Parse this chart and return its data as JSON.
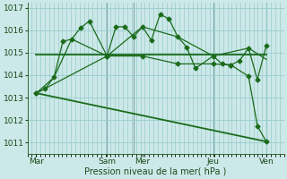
{
  "bg_color": "#cce8e8",
  "grid_color": "#99cccc",
  "line_color": "#1a6b1a",
  "xlabel": "Pression niveau de la mer( hPa )",
  "ylim": [
    1010.5,
    1017.2
  ],
  "yticks": [
    1011,
    1012,
    1013,
    1014,
    1015,
    1016,
    1017
  ],
  "xtick_labels": [
    "Mar",
    "Sam",
    "Mer",
    "Jeu",
    "Ven"
  ],
  "xtick_positions": [
    0,
    40,
    60,
    100,
    130
  ],
  "xlim": [
    -5,
    140
  ],
  "series1_x": [
    0,
    5,
    10,
    15,
    20,
    25,
    30,
    40,
    45,
    50,
    55,
    60,
    65,
    70,
    75,
    80,
    85,
    90,
    100,
    105,
    110,
    115,
    120,
    125,
    130
  ],
  "series1_y": [
    1013.2,
    1013.4,
    1013.9,
    1015.5,
    1015.6,
    1016.1,
    1016.4,
    1014.85,
    1016.15,
    1016.15,
    1015.7,
    1016.15,
    1015.55,
    1016.7,
    1016.5,
    1015.7,
    1015.25,
    1014.3,
    1014.85,
    1014.5,
    1014.45,
    1014.65,
    1015.2,
    1013.8,
    1015.3
  ],
  "series2_x": [
    0,
    130
  ],
  "series2_y": [
    1014.9,
    1014.9
  ],
  "series3_x": [
    0,
    130
  ],
  "series3_y": [
    1013.2,
    1011.05
  ],
  "series4_x": [
    0,
    10,
    20,
    40,
    60,
    80,
    100,
    120,
    130
  ],
  "series4_y": [
    1013.2,
    1013.9,
    1015.6,
    1014.85,
    1016.15,
    1015.7,
    1014.85,
    1015.2,
    1014.7
  ],
  "series5_x": [
    0,
    40,
    60,
    80,
    100,
    110,
    120,
    125,
    130
  ],
  "series5_y": [
    1013.2,
    1014.85,
    1014.85,
    1014.5,
    1014.5,
    1014.45,
    1013.95,
    1011.75,
    1011.05
  ],
  "vlines": [
    40,
    55,
    100,
    130
  ],
  "vline_color": "#336666",
  "vline_alpha": 0.5
}
